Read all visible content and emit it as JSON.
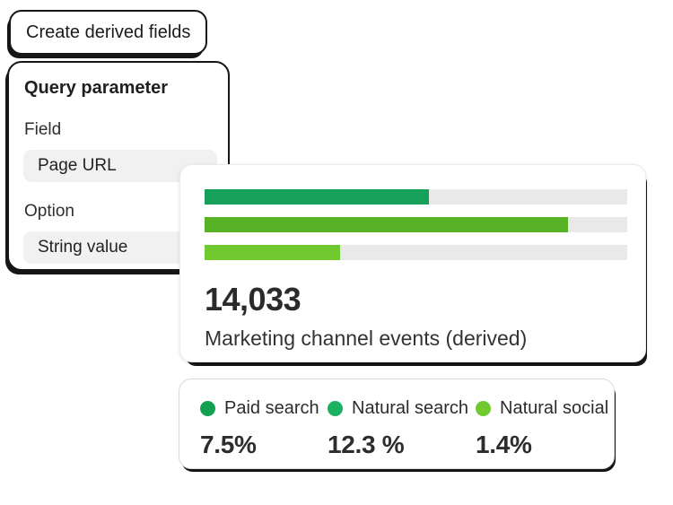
{
  "chip": {
    "label": "Create derived fields"
  },
  "query_panel": {
    "title": "Query parameter",
    "field_label": "Field",
    "field_value": "Page URL",
    "option_label": "Option",
    "option_value": "String value"
  },
  "chart_card": {
    "metric_value": "14,033",
    "metric_label": "Marketing channel events (derived)"
  },
  "chart_data": {
    "type": "bar",
    "orientation": "horizontal",
    "title": "Marketing channel events (derived)",
    "total_label": "14,033",
    "categories": [
      "Paid search",
      "Natural search",
      "Natural social"
    ],
    "values": [
      7.5,
      12.3,
      1.4
    ],
    "value_labels": [
      "7.5%",
      "12.3 %",
      "1.4%"
    ],
    "bar_fill_fractions": [
      0.53,
      0.86,
      0.32
    ],
    "bar_colors": [
      "#16A05A",
      "#57B225",
      "#71C930"
    ],
    "track_color": "#E9E9E9",
    "grid": false,
    "legend_position": "bottom-card"
  },
  "legend": {
    "items": [
      {
        "label": "Paid search",
        "value": "7.5%",
        "color": "#12A150"
      },
      {
        "label": "Natural search",
        "value": "12.3 %",
        "color": "#1BB261"
      },
      {
        "label": "Natural social",
        "value": "1.4%",
        "color": "#71C930"
      }
    ]
  }
}
